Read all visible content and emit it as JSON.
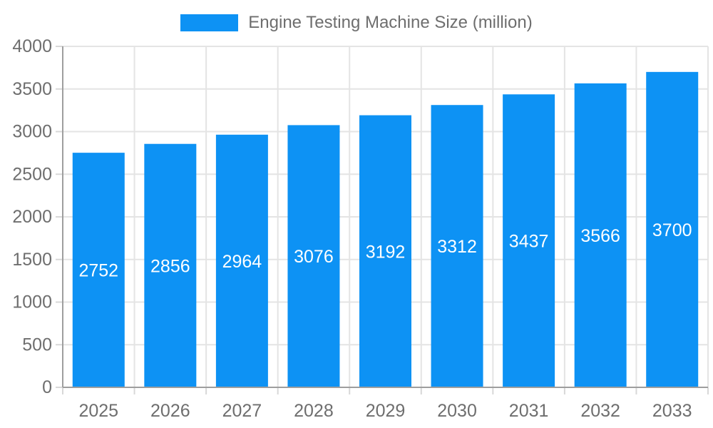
{
  "legend": {
    "label": "Engine Testing Machine Size (million)"
  },
  "chart_data": {
    "type": "bar",
    "title": "Engine Testing Machine Size (million)",
    "series_name": "Engine Testing Machine Size (million)",
    "categories": [
      "2025",
      "2026",
      "2027",
      "2028",
      "2029",
      "2030",
      "2031",
      "2032",
      "2033"
    ],
    "values": [
      2752,
      2856,
      2964,
      3076,
      3192,
      3312,
      3437,
      3566,
      3700
    ],
    "value_labels": [
      "2752",
      "2856",
      "2964",
      "3076",
      "3192",
      "3312",
      "3437",
      "3566",
      "3700"
    ],
    "ytick_labels": [
      "0",
      "500",
      "1000",
      "1500",
      "2000",
      "2500",
      "3000",
      "3500",
      "4000"
    ],
    "ylim": [
      0,
      4000
    ],
    "ytick_step": 500,
    "grid": true,
    "legend_position": "top",
    "xlabel": "",
    "ylabel": "",
    "colors": {
      "bar": "#0d92f4",
      "value_label": "#ffffff",
      "grid": "#e4e4e4",
      "tick": "#d8d8d8",
      "axis": "#9e9e9e",
      "text": "#6e6e6e"
    }
  }
}
